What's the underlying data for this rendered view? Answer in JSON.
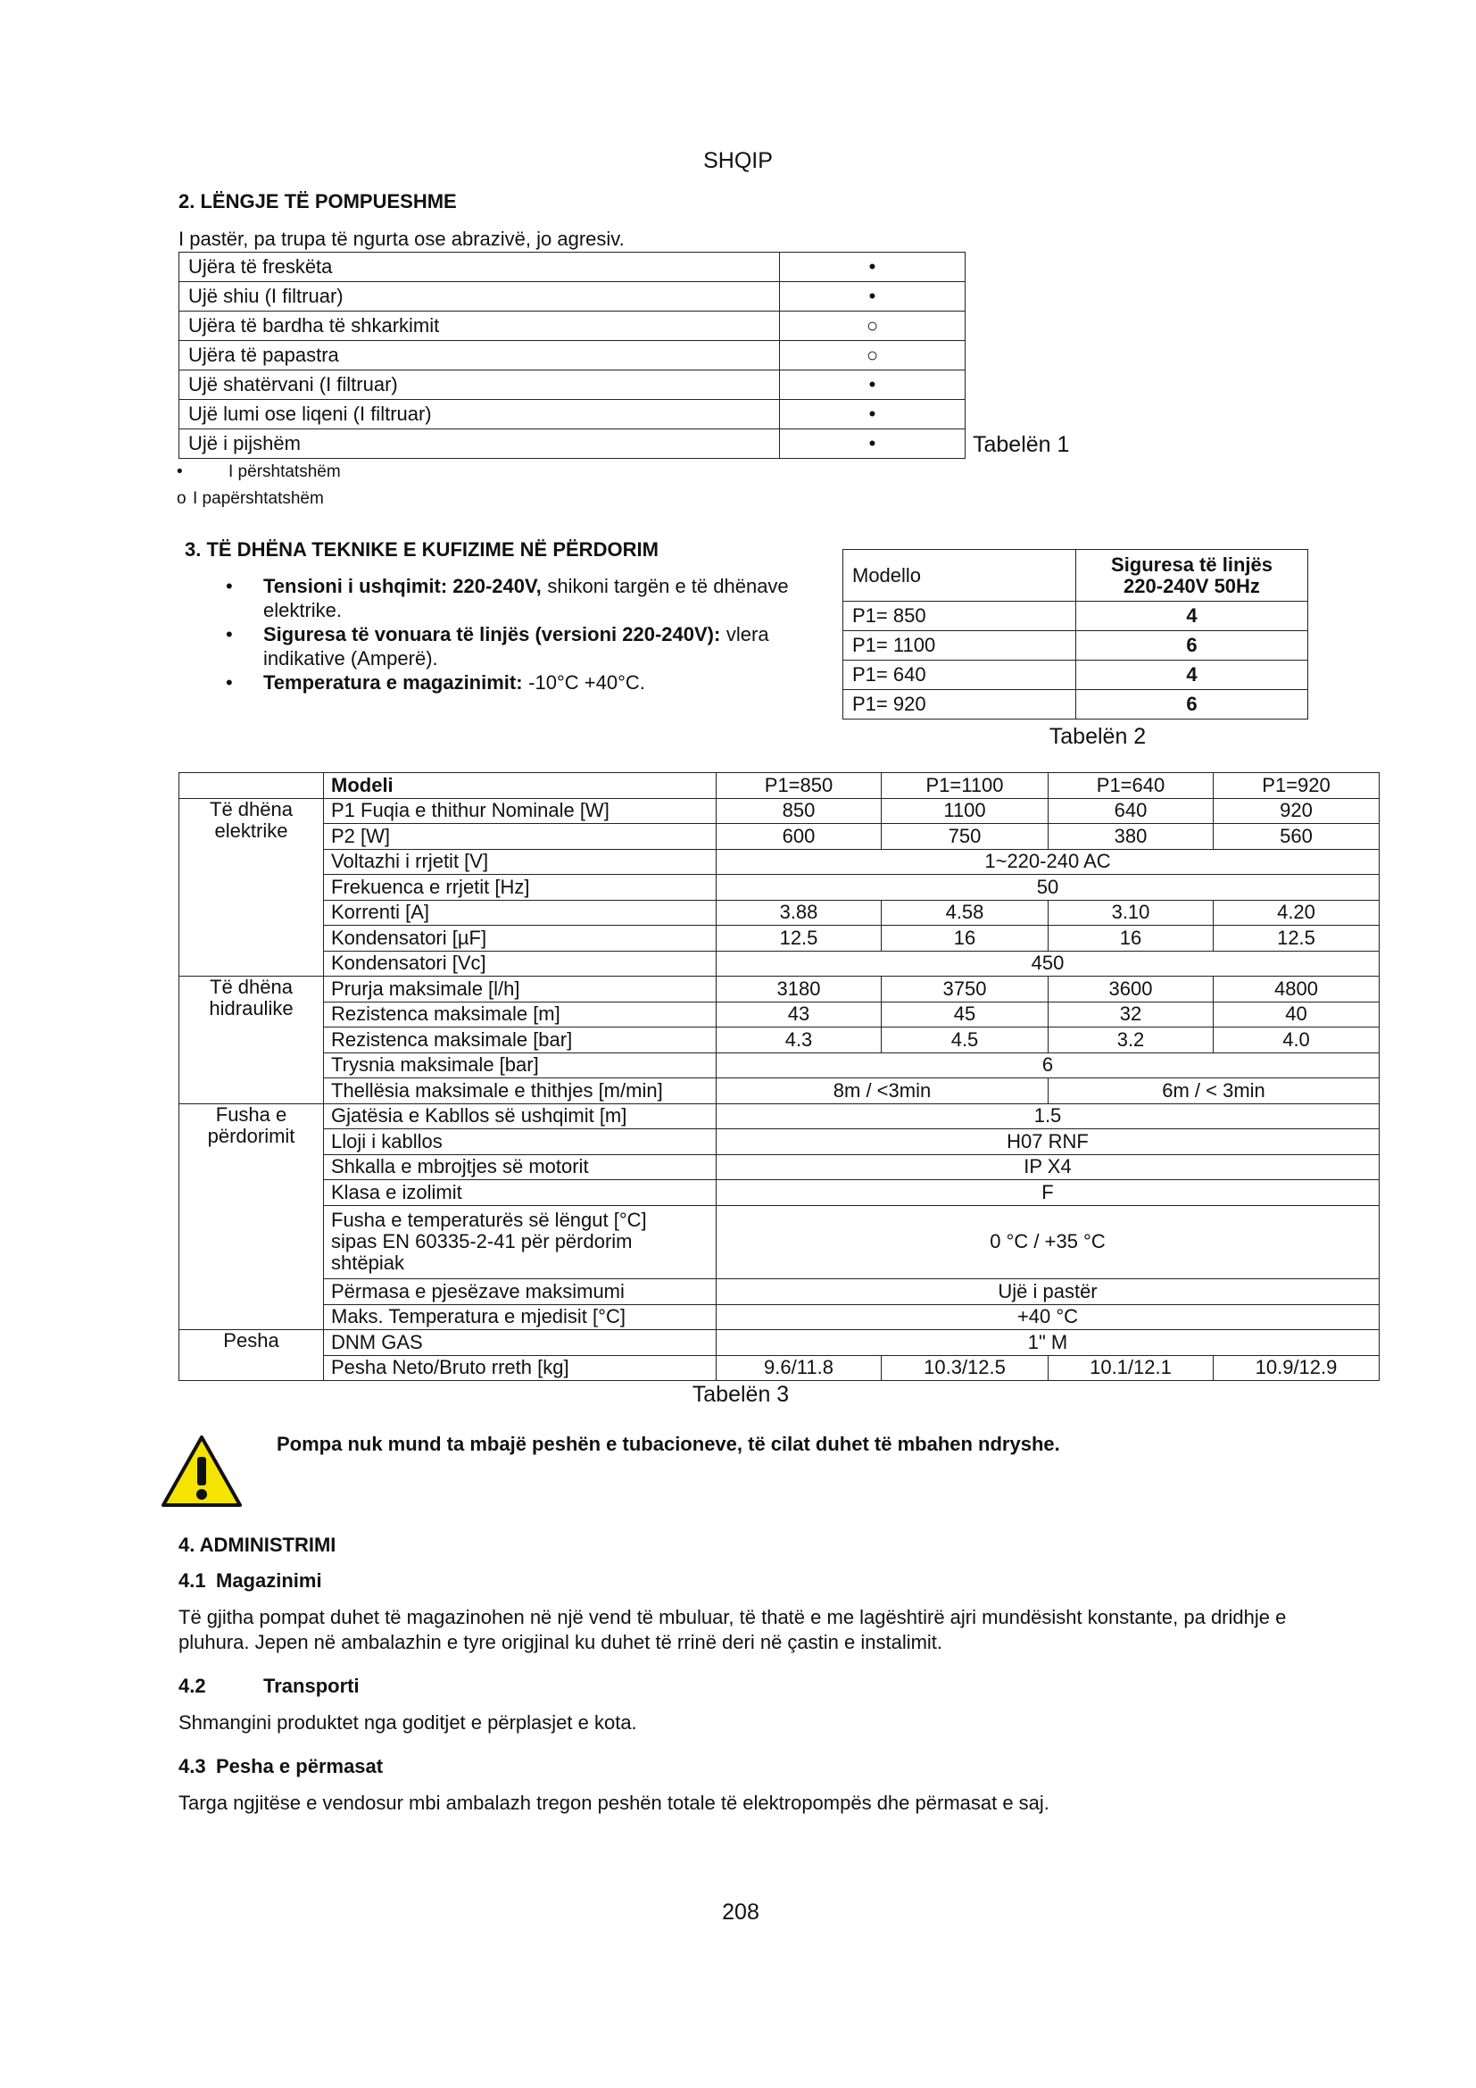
{
  "header": {
    "title": "SHQIP"
  },
  "section2": {
    "heading": "2. LËNGJE TË POMPUESHME",
    "intro": "I pastër, pa trupa të ngurta ose abrazivë, jo agresiv."
  },
  "table1": {
    "rows": [
      [
        "Ujëra të freskëta",
        "•"
      ],
      [
        "Ujë shiu (I filtruar)",
        "•"
      ],
      [
        "Ujëra të bardha të shkarkimit",
        "○"
      ],
      [
        "Ujëra të papastra",
        "○"
      ],
      [
        "Ujë shatërvani (I filtruar)",
        "•"
      ],
      [
        "Ujë lumi ose liqeni (I filtruar)",
        "•"
      ],
      [
        "Ujë i pijshëm",
        "•"
      ]
    ],
    "caption": "Tabelën 1",
    "legend": [
      {
        "symbol": "•",
        "label": "I përshtatshëm"
      },
      {
        "symbol": "o",
        "label": "I papërshtatshëm"
      }
    ]
  },
  "section3": {
    "heading": "3. TË DHËNA TEKNIKE E KUFIZIME NË PËRDORIM",
    "bullets": [
      {
        "bold": "Tensioni i ushqimit: 220-240V,",
        "text": "shikoni targën e të dhënave elektrike."
      },
      {
        "bold": "Siguresa të vonuara të linjës (versioni 220-240V):",
        "text": "vlera indikative (Amperë)."
      },
      {
        "bold": "Temperatura e magazinimit:",
        "text": "-10°C +40°C."
      }
    ]
  },
  "table2": {
    "header": [
      "Modello",
      [
        "Siguresa të linjës",
        "220-240V 50Hz"
      ]
    ],
    "rows": [
      [
        "P1= 850",
        "4"
      ],
      [
        "P1= 1100",
        "6"
      ],
      [
        "P1= 640",
        "4"
      ],
      [
        "P1= 920",
        "6"
      ]
    ],
    "caption": "Tabelën 2"
  },
  "table3": {
    "header": {
      "label": "Modeli",
      "models": [
        "P1=850",
        "P1=1100",
        "P1=640",
        "P1=920"
      ]
    },
    "groups": [
      {
        "name": [
          "Të dhëna",
          "elektrike"
        ],
        "rows": [
          {
            "label": "P1 Fuqia e thithur Nominale [W]",
            "values": [
              "850",
              "1100",
              "640",
              "920"
            ]
          },
          {
            "label": "P2 [W]",
            "values": [
              "600",
              "750",
              "380",
              "560"
            ]
          },
          {
            "label": "Voltazhi i rrjetit [V]",
            "values": [
              "1~220-240 AC"
            ]
          },
          {
            "label": "Frekuenca e rrjetit [Hz]",
            "values": [
              "50"
            ]
          },
          {
            "label": "Korrenti [A]",
            "values": [
              "3.88",
              "4.58",
              "3.10",
              "4.20"
            ]
          },
          {
            "label": "Kondensatori [µF]",
            "values": [
              "12.5",
              "16",
              "16",
              "12.5"
            ]
          },
          {
            "label": "Kondensatori [Vc]",
            "values": [
              "450"
            ]
          }
        ]
      },
      {
        "name": [
          "Të dhëna",
          "hidraulike"
        ],
        "rows": [
          {
            "label": "Prurja maksimale [l/h]",
            "values": [
              "3180",
              "3750",
              "3600",
              "4800"
            ]
          },
          {
            "label": "Rezistenca maksimale [m]",
            "values": [
              "43",
              "45",
              "32",
              "40"
            ]
          },
          {
            "label": "Rezistenca maksimale [bar]",
            "values": [
              "4.3",
              "4.5",
              "3.2",
              "4.0"
            ]
          },
          {
            "label": "Trysnia maksimale [bar]",
            "values": [
              "6"
            ]
          },
          {
            "label": "Thellësia maksimale e thithjes [m/min]",
            "values": [
              "8m / <3min",
              "6m / < 3min"
            ]
          }
        ]
      },
      {
        "name": [
          "Fusha e",
          "përdorimit"
        ],
        "rows": [
          {
            "label": "Gjatësia e Kabllos së ushqimit [m]",
            "values": [
              "1.5"
            ]
          },
          {
            "label": "Lloji i kabllos",
            "values": [
              "H07 RNF"
            ]
          },
          {
            "label": "Shkalla e mbrojtjes së motorit",
            "values": [
              "IP X4"
            ]
          },
          {
            "label": "Klasa e izolimit",
            "values": [
              "F"
            ]
          },
          {
            "label": [
              "Fusha e temperaturës së lëngut [°C]",
              "sipas EN 60335-2-41 për përdorim",
              "shtëpiak"
            ],
            "values": [
              "0 °C / +35 °C"
            ]
          },
          {
            "label": "Përmasa e pjesëzave maksimumi",
            "values": [
              "Ujë i pastër"
            ]
          },
          {
            "label": "Maks. Temperatura e mjedisit  [°C]",
            "values": [
              "+40 °C"
            ]
          }
        ]
      },
      {
        "name": [
          "Pesha"
        ],
        "rows": [
          {
            "label": "DNM GAS",
            "values": [
              "1\" M"
            ]
          },
          {
            "label": "Pesha Neto/Bruto rreth [kg]",
            "values": [
              "9.6/11.8",
              "10.3/12.5",
              "10.1/12.1",
              "10.9/12.9"
            ]
          }
        ]
      }
    ],
    "caption": "Tabelën 3"
  },
  "warning": "Pompa nuk mund ta mbajë peshën e tubacioneve, të cilat duhet të mbahen ndryshe.",
  "section4": {
    "heading": "4. ADMINISTRIMI",
    "subsections": [
      {
        "number": "4.1",
        "title": "Magazinimi",
        "text": "Të gjitha pompat duhet të magazinohen në një vend të mbuluar, të thatë e me lagështirë ajri mundësisht konstante, pa dridhje e pluhura. Jepen në ambalazhin e tyre origjinal ku duhet të rrinë deri në çastin e instalimit."
      },
      {
        "number": "4.2",
        "title": "Transporti",
        "text": "Shmangini produktet nga goditjet e përplasjet e kota."
      },
      {
        "number": "4.3",
        "title": "Pesha e përmasat",
        "text": "Targa ngjitëse e vendosur mbi ambalazh tregon peshën totale të elektropompës dhe përmasat e saj."
      }
    ]
  },
  "footer": {
    "page": "208"
  }
}
